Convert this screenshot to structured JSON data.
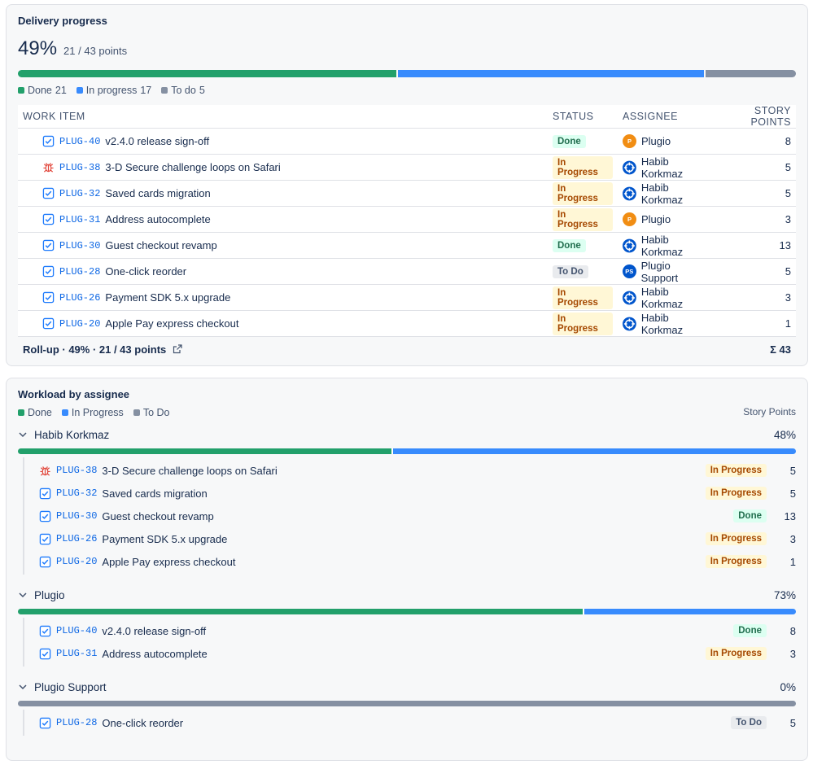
{
  "statuses": [
    {
      "label": "Done",
      "color": "#22a06b",
      "badge_bg": "#dcfff1",
      "badge_fg": "#216e4e"
    },
    {
      "label": "In Progress",
      "color": "#388bfd",
      "badge_bg": "#fff7d6",
      "badge_fg": "#a54800"
    },
    {
      "label": "To Do",
      "color": "#8590a2",
      "badge_bg": "#e9ebee",
      "badge_fg": "#44546f"
    }
  ],
  "delivery": {
    "title": "Delivery progress",
    "percent": "49%",
    "points": "21 / 43 points",
    "segments": [
      {
        "label": "Done",
        "value": 21,
        "color": "#22a06b"
      },
      {
        "label": "In progress",
        "value": 17,
        "color": "#388bfd"
      },
      {
        "label": "To do",
        "value": 5,
        "color": "#8590a2"
      }
    ]
  },
  "table": {
    "columns": [
      "WORK ITEM",
      "STATUS",
      "ASSIGNEE",
      "STORY POINTS"
    ],
    "rows": [
      {
        "key": "PLUG-40",
        "type": "task",
        "summary": "v2.4.0 release sign-off",
        "status": "Done",
        "assignee": "Plugio",
        "avatar": "P",
        "avatar_color": "#f18d13",
        "points": 8
      },
      {
        "key": "PLUG-38",
        "type": "bug",
        "summary": "3-D Secure challenge loops on Safari",
        "status": "In Progress",
        "assignee": "Habib Korkmaz",
        "points": 5
      },
      {
        "key": "PLUG-32",
        "type": "task",
        "summary": "Saved cards migration",
        "status": "In Progress",
        "assignee": "Habib Korkmaz",
        "points": 5
      },
      {
        "key": "PLUG-31",
        "type": "task",
        "summary": "Address autocomplete",
        "status": "In Progress",
        "assignee": "Plugio",
        "avatar": "P",
        "avatar_color": "#f18d13",
        "points": 3
      },
      {
        "key": "PLUG-30",
        "type": "task",
        "summary": "Guest checkout revamp",
        "status": "Done",
        "assignee": "Habib Korkmaz",
        "points": 13
      },
      {
        "key": "PLUG-28",
        "type": "task",
        "summary": "One-click reorder",
        "status": "To Do",
        "assignee": "Plugio Support",
        "avatar": "PS",
        "avatar_color": "#0055cc",
        "points": 5
      },
      {
        "key": "PLUG-26",
        "type": "task",
        "summary": "Payment SDK 5.x upgrade",
        "status": "In Progress",
        "assignee": "Habib Korkmaz",
        "points": 3
      },
      {
        "key": "PLUG-20",
        "type": "task",
        "summary": "Apple Pay express checkout",
        "status": "In Progress",
        "assignee": "Habib Korkmaz",
        "points": 1
      }
    ],
    "footer": {
      "rollup": "Roll-up · 49% · 21 / 43 points",
      "total": "Σ 43"
    }
  },
  "workload": {
    "title": "Workload by assignee",
    "points_label": "Story Points",
    "groups": [
      {
        "name": "Habib Korkmaz",
        "percent": "48%",
        "segments": [
          13,
          14,
          0
        ],
        "items": [
          {
            "key": "PLUG-38",
            "type": "bug",
            "summary": "3-D Secure challenge loops on Safari",
            "status": "In Progress",
            "points": 5
          },
          {
            "key": "PLUG-32",
            "type": "task",
            "summary": "Saved cards migration",
            "status": "In Progress",
            "points": 5
          },
          {
            "key": "PLUG-30",
            "type": "task",
            "summary": "Guest checkout revamp",
            "status": "Done",
            "points": 13
          },
          {
            "key": "PLUG-26",
            "type": "task",
            "summary": "Payment SDK 5.x upgrade",
            "status": "In Progress",
            "points": 3
          },
          {
            "key": "PLUG-20",
            "type": "task",
            "summary": "Apple Pay express checkout",
            "status": "In Progress",
            "points": 1
          }
        ]
      },
      {
        "name": "Plugio",
        "percent": "73%",
        "segments": [
          8,
          3,
          0
        ],
        "items": [
          {
            "key": "PLUG-40",
            "type": "task",
            "summary": "v2.4.0 release sign-off",
            "status": "Done",
            "points": 8
          },
          {
            "key": "PLUG-31",
            "type": "task",
            "summary": "Address autocomplete",
            "status": "In Progress",
            "points": 3
          }
        ]
      },
      {
        "name": "Plugio Support",
        "percent": "0%",
        "segments": [
          0,
          0,
          5
        ],
        "items": [
          {
            "key": "PLUG-28",
            "type": "task",
            "summary": "One-click reorder",
            "status": "To Do",
            "points": 5
          }
        ]
      }
    ]
  }
}
